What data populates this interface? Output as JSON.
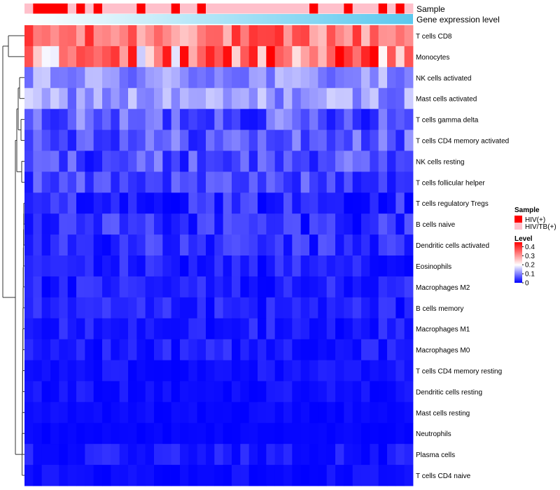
{
  "chart_data": {
    "type": "heatmap",
    "annotation_tracks": [
      "Sample",
      "Gene expression level"
    ],
    "rows": [
      "T cells CD8",
      "Monocytes",
      "NK cells activated",
      "Mast cells activated",
      "T cells gamma delta",
      "T cells CD4 memory activated",
      "NK cells resting",
      "T cells follicular helper",
      "T cells regulatory  Tregs",
      "B cells naive",
      "Dendritic cells activated",
      "Eosinophils",
      "Macrophages M2",
      "B cells memory",
      "Macrophages M1",
      "Macrophages M0",
      "T cells CD4 memory resting",
      "Dendritic cells resting",
      "Mast cells resting",
      "Neutrophils",
      "Plasma cells",
      "T cells CD4 naive"
    ],
    "columns": 45,
    "sample_groups": [
      1,
      0,
      0,
      0,
      0,
      1,
      0,
      1,
      0,
      1,
      1,
      1,
      1,
      0,
      1,
      1,
      1,
      0,
      1,
      1,
      0,
      1,
      1,
      1,
      1,
      1,
      1,
      1,
      1,
      1,
      1,
      1,
      1,
      0,
      1,
      1,
      1,
      0,
      1,
      1,
      1,
      0,
      1,
      0,
      1
    ],
    "sample_legend": {
      "title": "Sample",
      "labels": [
        "HIV(+)",
        "HIV/TB(+)"
      ],
      "colors": [
        "#ff0000",
        "#ffc0cb"
      ]
    },
    "expression_track_colors": [
      "#ffffff",
      "#5bc8ee"
    ],
    "color_scale": {
      "title": "Level",
      "ticks": [
        "0.4",
        "0.3",
        "0.2",
        "0.1",
        "0"
      ],
      "tick_values": [
        0.4,
        0.3,
        0.2,
        0.1,
        0
      ],
      "min": 0,
      "mid": 0.2,
      "max": 0.45,
      "colors": [
        "#0000ff",
        "#ffffff",
        "#ff0000"
      ]
    },
    "row_means": [
      0.33,
      0.28,
      0.11,
      0.12,
      0.07,
      0.07,
      0.06,
      0.055,
      0.03,
      0.04,
      0.035,
      0.025,
      0.02,
      0.02,
      0.015,
      0.015,
      0.01,
      0.01,
      0.005,
      0.003,
      0.01,
      0.005
    ],
    "row_spread": [
      0.08,
      0.12,
      0.05,
      0.05,
      0.06,
      0.05,
      0.05,
      0.04,
      0.04,
      0.04,
      0.035,
      0.03,
      0.03,
      0.03,
      0.03,
      0.03,
      0.02,
      0.02,
      0.01,
      0.005,
      0.03,
      0.02
    ]
  }
}
